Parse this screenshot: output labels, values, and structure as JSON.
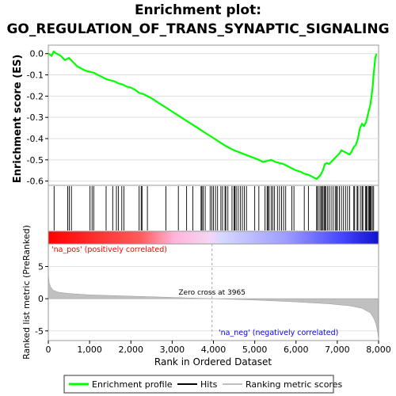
{
  "chart_data": {
    "type": "line",
    "title_line1": "Enrichment plot:",
    "title_line2": "GO_REGULATION_OF_TRANS_SYNAPTIC_SIGNALING",
    "xlabel": "Rank in Ordered Dataset",
    "xlim": [
      0,
      8000
    ],
    "x_ticks": [
      0,
      1000,
      2000,
      3000,
      4000,
      5000,
      6000,
      7000,
      8000
    ],
    "x_tick_labels": [
      "0",
      "1,000",
      "2,000",
      "3,000",
      "4,000",
      "5,000",
      "6,000",
      "7,000",
      "8,000"
    ],
    "es_panel": {
      "ylabel": "Enrichment score (ES)",
      "ylim": [
        -0.62,
        0.04
      ],
      "y_ticks": [
        0.0,
        -0.1,
        -0.2,
        -0.3,
        -0.4,
        -0.5,
        -0.6
      ],
      "y_tick_labels": [
        "0.0",
        "-0.1",
        "-0.2",
        "-0.3",
        "-0.4",
        "-0.5",
        "-0.6"
      ],
      "enrichment_profile": {
        "x": [
          0,
          80,
          130,
          200,
          300,
          400,
          500,
          600,
          700,
          800,
          900,
          1000,
          1100,
          1200,
          1300,
          1400,
          1500,
          1600,
          1700,
          1800,
          1900,
          2000,
          2100,
          2200,
          2300,
          2400,
          2500,
          2700,
          2900,
          3100,
          3300,
          3500,
          3700,
          3900,
          4100,
          4300,
          4500,
          4700,
          4900,
          5100,
          5200,
          5300,
          5400,
          5500,
          5600,
          5700,
          5800,
          5900,
          6000,
          6100,
          6200,
          6300,
          6400,
          6500,
          6550,
          6600,
          6650,
          6700,
          6750,
          6800,
          6850,
          6900,
          6950,
          7000,
          7050,
          7100,
          7150,
          7200,
          7250,
          7300,
          7350,
          7400,
          7450,
          7500,
          7550,
          7600,
          7650,
          7700,
          7750,
          7800,
          7830,
          7860,
          7880,
          7900,
          7920,
          7950
        ],
        "y": [
          0.0,
          -0.01,
          0.01,
          0.0,
          -0.01,
          -0.03,
          -0.02,
          -0.04,
          -0.06,
          -0.07,
          -0.08,
          -0.085,
          -0.09,
          -0.1,
          -0.11,
          -0.12,
          -0.125,
          -0.13,
          -0.14,
          -0.145,
          -0.155,
          -0.16,
          -0.17,
          -0.185,
          -0.19,
          -0.2,
          -0.21,
          -0.235,
          -0.26,
          -0.285,
          -0.31,
          -0.335,
          -0.36,
          -0.385,
          -0.41,
          -0.435,
          -0.455,
          -0.47,
          -0.485,
          -0.5,
          -0.51,
          -0.505,
          -0.5,
          -0.51,
          -0.515,
          -0.52,
          -0.53,
          -0.54,
          -0.55,
          -0.555,
          -0.565,
          -0.57,
          -0.58,
          -0.59,
          -0.58,
          -0.57,
          -0.55,
          -0.52,
          -0.515,
          -0.52,
          -0.51,
          -0.5,
          -0.49,
          -0.48,
          -0.47,
          -0.455,
          -0.46,
          -0.465,
          -0.47,
          -0.475,
          -0.46,
          -0.44,
          -0.43,
          -0.4,
          -0.35,
          -0.33,
          -0.34,
          -0.32,
          -0.28,
          -0.24,
          -0.2,
          -0.15,
          -0.1,
          -0.06,
          -0.02,
          0.0
        ]
      }
    },
    "hits": [
      140,
      470,
      510,
      560,
      1010,
      1060,
      1100,
      1400,
      1560,
      1650,
      1700,
      1780,
      1830,
      2200,
      2250,
      2270,
      2400,
      2850,
      3150,
      3350,
      3500,
      3700,
      3720,
      3750,
      3800,
      3920,
      3960,
      4000,
      4050,
      4100,
      4180,
      4220,
      4280,
      4300,
      4350,
      4450,
      4500,
      4520,
      4550,
      4600,
      4650,
      4700,
      4750,
      4800,
      5000,
      5100,
      5250,
      5300,
      5320,
      5350,
      5400,
      5440,
      5480,
      5550,
      5600,
      5650,
      5700,
      5750,
      5900,
      5950,
      6200,
      6300,
      6500,
      6520,
      6560,
      6600,
      6620,
      6650,
      6680,
      6700,
      6720,
      6760,
      6800,
      6850,
      6900,
      6950,
      6980,
      7000,
      7050,
      7100,
      7150,
      7200,
      7250,
      7300,
      7400,
      7420,
      7480,
      7500,
      7560,
      7600,
      7620,
      7680,
      7700,
      7720,
      7760,
      7780,
      7800,
      7820,
      7850,
      7880
    ],
    "metric_panel": {
      "ylabel": "Ranked list metric (PreRanked)",
      "ylim": [
        -6.5,
        8.5
      ],
      "y_ticks": [
        5,
        0,
        -5
      ],
      "y_tick_labels": [
        "5",
        "0",
        "-5"
      ],
      "zero_cross_rank": 3965,
      "zero_cross_label": "Zero cross at 3965",
      "pos_label": "'na_pos' (positively correlated)",
      "neg_label": "'na_neg' (negatively correlated)",
      "metric_curve": {
        "x": [
          0,
          20,
          60,
          120,
          250,
          500,
          1000,
          2000,
          3000,
          3965,
          5000,
          6000,
          6800,
          7300,
          7600,
          7800,
          7880,
          7930,
          7960,
          7980,
          7995
        ],
        "y": [
          4.0,
          2.5,
          1.8,
          1.3,
          1.0,
          0.8,
          0.6,
          0.4,
          0.2,
          0.0,
          -0.2,
          -0.5,
          -0.8,
          -1.1,
          -1.5,
          -2.2,
          -3.0,
          -3.8,
          -4.6,
          -5.3,
          -6.0
        ]
      }
    },
    "legend": {
      "placement": "bottom",
      "items": [
        {
          "label": "Enrichment profile",
          "color": "#00ff00"
        },
        {
          "label": "Hits",
          "color": "#000000"
        },
        {
          "label": "Ranking metric scores",
          "color": "#c0c0c0"
        }
      ]
    },
    "colors": {
      "profile": "#00ff00",
      "pos_text": "#ff0000",
      "neg_text": "#0000ff",
      "metric_fill": "#c0c0c0",
      "frame": "#999999"
    }
  }
}
